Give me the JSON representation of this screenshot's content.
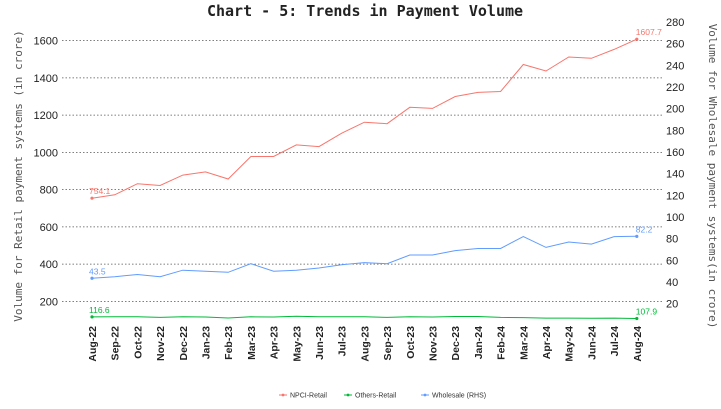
{
  "chart_data": {
    "type": "line",
    "title": "Chart - 5: Trends in Payment Volume",
    "ylabel": "Volume for Retail payment systems (in crore)",
    "y2label": "Volume for Wholesale payment systems(in crore)",
    "ylim": [
      100,
      1700
    ],
    "y_ticks": [
      200,
      400,
      600,
      800,
      1000,
      1200,
      1400,
      1600
    ],
    "y2lim": [
      5,
      280
    ],
    "y2_ticks": [
      20,
      40,
      60,
      80,
      100,
      120,
      140,
      160,
      180,
      200,
      220,
      240,
      260,
      280
    ],
    "categories": [
      "Aug-22",
      "Sep-22",
      "Oct-22",
      "Nov-22",
      "Dec-22",
      "Jan-23",
      "Feb-23",
      "Mar-23",
      "Apr-23",
      "May-23",
      "Jun-23",
      "Jul-23",
      "Aug-23",
      "Sep-23",
      "Oct-23",
      "Nov-23",
      "Dec-23",
      "Jan-24",
      "Feb-24",
      "Mar-24",
      "Apr-24",
      "May-24",
      "Jun-24",
      "Jul-24",
      "Aug-24"
    ],
    "grid": true,
    "legend_position": "bottom",
    "series": [
      {
        "name": "NPCI-Retail",
        "axis": "left",
        "color": "#f8766d",
        "values": [
          754.1,
          772,
          832,
          822,
          878,
          895,
          857,
          978,
          978,
          1040,
          1031,
          1103,
          1162,
          1154,
          1242,
          1236,
          1300,
          1322,
          1327,
          1472,
          1437,
          1512,
          1505,
          1553,
          1607.7
        ],
        "labels": {
          "first": "754.1",
          "last": "1607.7"
        }
      },
      {
        "name": "Others-Retail",
        "axis": "left",
        "color": "#00ba38",
        "values": [
          116.6,
          117,
          117,
          114,
          117,
          116,
          111,
          117,
          116,
          120,
          117,
          117,
          117,
          114,
          117,
          116,
          119,
          119,
          114,
          113,
          110,
          110,
          109,
          110,
          107.9
        ],
        "labels": {
          "first": "116.6",
          "last": "107.9"
        }
      },
      {
        "name": "Wholesale (RHS)",
        "axis": "right",
        "color": "#619cff",
        "values": [
          43.5,
          45,
          47,
          45,
          51,
          50,
          49,
          57,
          50,
          51,
          53,
          56,
          58,
          57,
          65,
          65,
          69,
          71,
          71,
          82,
          72,
          77,
          75,
          82,
          82.2
        ],
        "labels": {
          "first": "43.5",
          "last": "82.2"
        }
      }
    ]
  }
}
